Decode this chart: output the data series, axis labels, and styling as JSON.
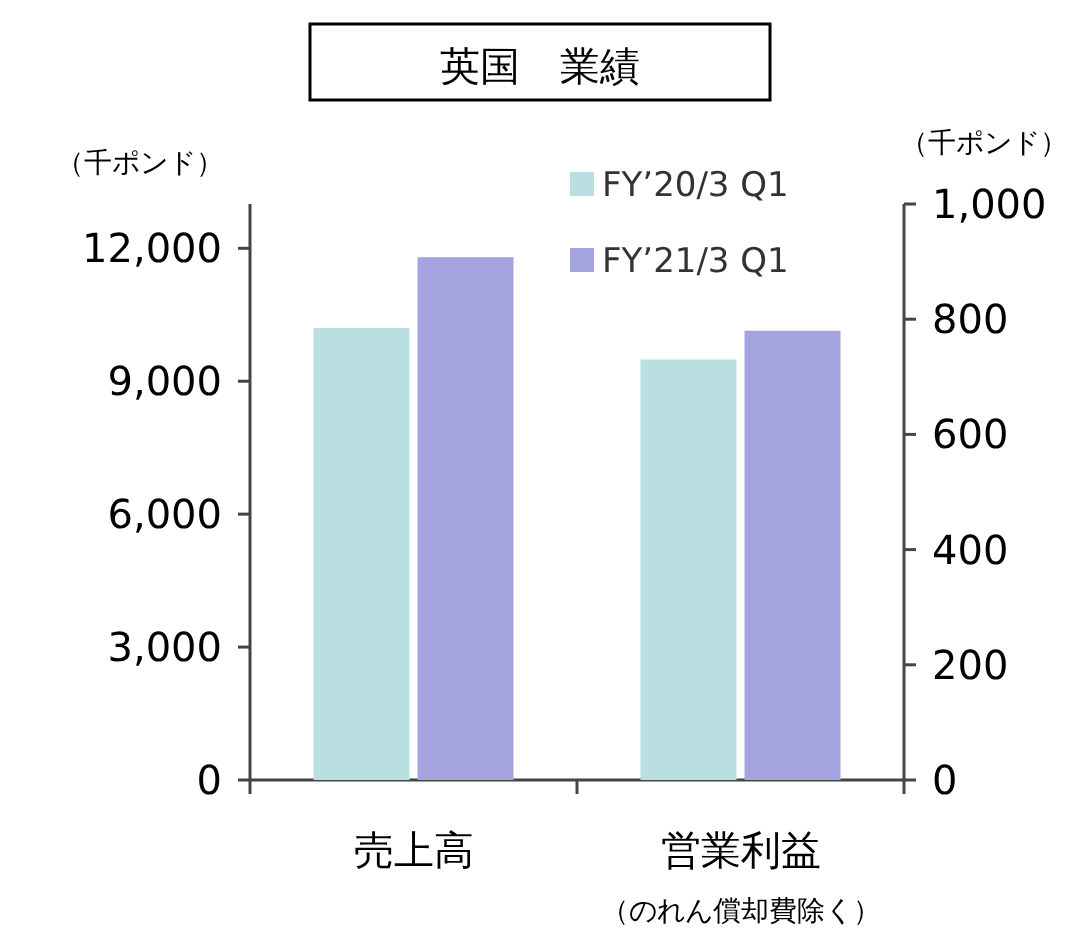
{
  "chart_data": {
    "type": "bar",
    "title": "英国　業績",
    "ylabel": "（千ポンド）",
    "y2label": "（千ポンド）",
    "categories": [
      "売上高",
      "営業利益"
    ],
    "annotations": [
      "（のれん償却費除く）"
    ],
    "series": [
      {
        "name": "FY’20/3 Q1",
        "color": "#badfe1",
        "values": [
          10200,
          null
        ]
      },
      {
        "name": "FY’21/3 Q1",
        "color": "#a5a4e0",
        "values": [
          11800,
          null
        ]
      },
      {
        "color": "#badfe1",
        "values": [
          null,
          730
        ],
        "axis": "y2"
      },
      {
        "color": "#a5a4e0",
        "values": [
          null,
          780
        ],
        "axis": "y2"
      }
    ],
    "ylim": [
      0,
      13000
    ],
    "yticks": [
      0,
      {
        "value": 3000,
        "label": "3,000"
      },
      {
        "value": 6000,
        "label": "6,000"
      },
      {
        "value": 9000,
        "label": "9,000"
      },
      {
        "value": 12000,
        "label": "12,000"
      }
    ],
    "y2lim": [
      0,
      1000
    ],
    "y2ticks": [
      0,
      200,
      400,
      600,
      800,
      {
        "value": 1000,
        "label": "1,000"
      }
    ],
    "legend": "top right"
  }
}
